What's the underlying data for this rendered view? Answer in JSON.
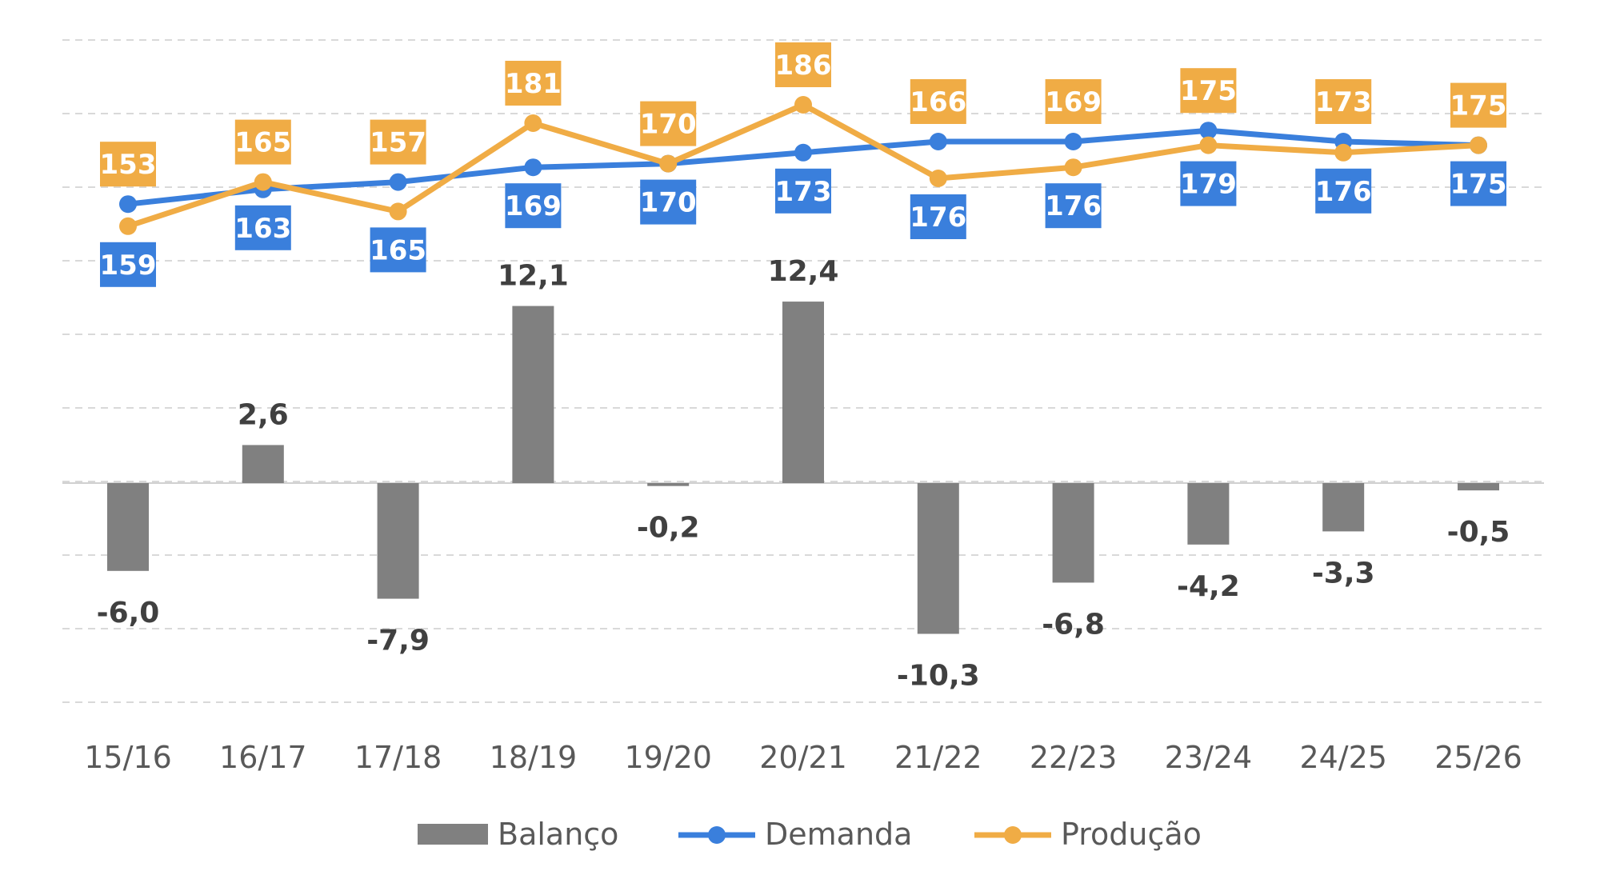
{
  "chart_data": {
    "type": "bar+line",
    "categories": [
      "15/16",
      "16/17",
      "17/18",
      "18/19",
      "19/20",
      "20/21",
      "21/22",
      "22/23",
      "23/24",
      "24/25",
      "25/26"
    ],
    "series": [
      {
        "name": "Balanço",
        "type": "bar",
        "labels": [
          "-6,0",
          "2,6",
          "-7,9",
          "12,1",
          "-0,2",
          "12,4",
          "-10,3",
          "-6,8",
          "-4,2",
          "-3,3",
          "-0,5"
        ],
        "values": [
          -6.0,
          2.6,
          -7.9,
          12.1,
          -0.2,
          12.4,
          -10.3,
          -6.8,
          -4.2,
          -3.3,
          -0.5
        ]
      },
      {
        "name": "Demanda",
        "type": "line",
        "labels": [
          "159",
          "163",
          "165",
          "169",
          "170",
          "173",
          "176",
          "176",
          "179",
          "176",
          "175"
        ],
        "values": [
          159,
          163,
          165,
          169,
          170,
          173,
          176,
          176,
          179,
          176,
          175
        ]
      },
      {
        "name": "Produção",
        "type": "line",
        "labels": [
          "153",
          "165",
          "157",
          "181",
          "170",
          "186",
          "166",
          "169",
          "175",
          "173",
          "175"
        ],
        "values": [
          153,
          165,
          157,
          181,
          170,
          186,
          166,
          169,
          175,
          173,
          175
        ]
      }
    ],
    "grid": true,
    "legend": "bottom",
    "colors": {
      "Balanço": "#808080",
      "Demanda": "#3a7fdc",
      "Produção": "#f0ac45"
    }
  }
}
